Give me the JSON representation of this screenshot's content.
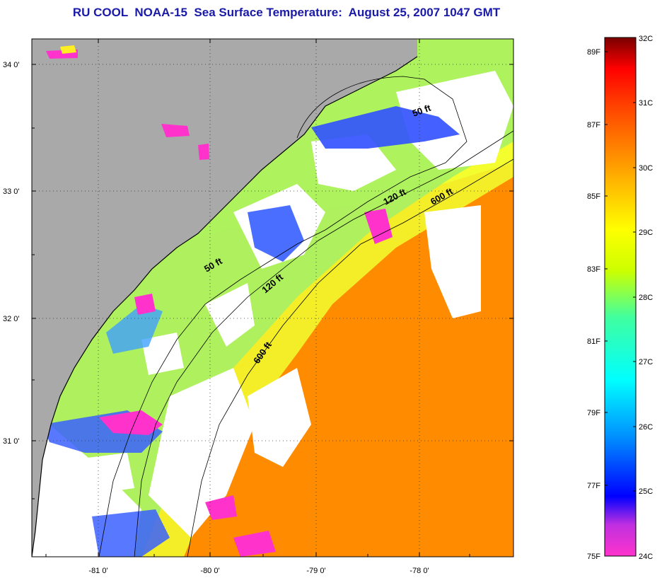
{
  "title": "RU COOL  NOAA-15  Sea Surface Temperature:  August 25, 2007 1047 GMT",
  "map": {
    "lat_labels": [
      "34 0'",
      "33 0'",
      "32 0'",
      "31 0'"
    ],
    "lon_labels": [
      "-81 0'",
      "-80 0'",
      "-79 0'",
      "-78 0'"
    ],
    "lat_range": [
      30.2,
      34.2
    ],
    "lon_range": [
      -81.5,
      -77.1
    ],
    "contours": [
      "50 ft",
      "120 ft",
      "600 ft",
      "50 ft",
      "120 ft",
      "600 ft"
    ],
    "colors": {
      "land": "#a9a9a9",
      "cloud": "#ffffff",
      "cool": "#ff33cc",
      "warm": "#ff8c00"
    }
  },
  "colorbar": {
    "fahrenheit": [
      "89F",
      "87F",
      "85F",
      "83F",
      "81F",
      "79F",
      "77F",
      "75F"
    ],
    "celsius": [
      "32C",
      "31C",
      "30C",
      "29C",
      "28C",
      "27C",
      "26C",
      "25C",
      "24C"
    ],
    "range_c": [
      24,
      32
    ]
  }
}
